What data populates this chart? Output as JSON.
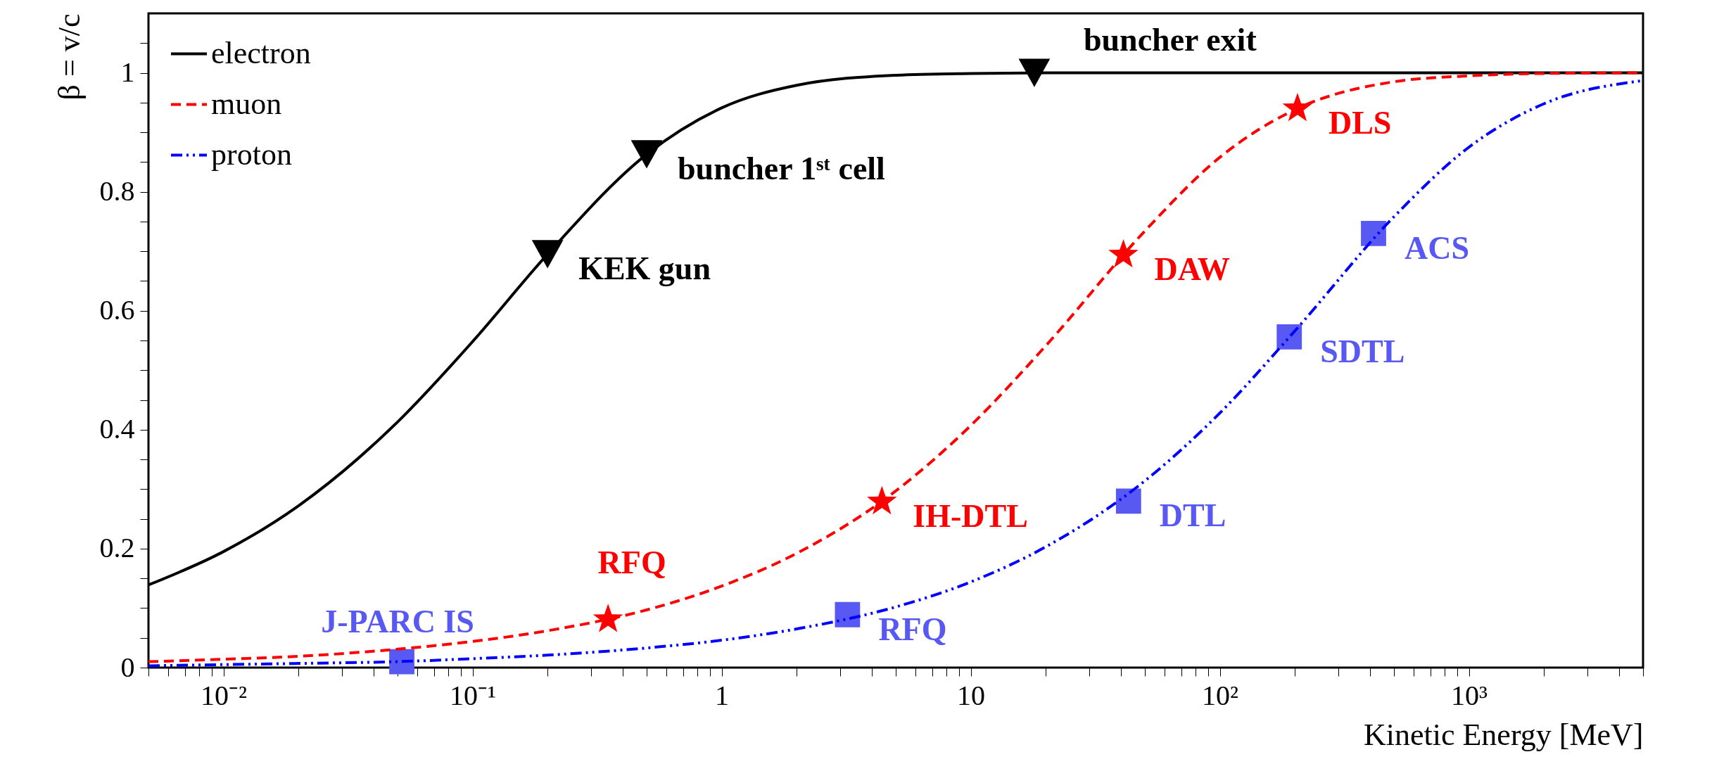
{
  "chart_data": {
    "type": "line",
    "xlabel": "Kinetic Energy [MeV]",
    "ylabel": "β = v/c",
    "log": "x",
    "grid": false,
    "legend": "top left",
    "xlim": [
      0.005,
      5000
    ],
    "ylim": [
      0,
      1.1
    ],
    "xticks": [
      {
        "value": 0.005,
        "label": null
      },
      {
        "value": 0.006,
        "label": null
      },
      {
        "value": 0.007,
        "label": null
      },
      {
        "value": 0.008,
        "label": null
      },
      {
        "value": 0.009,
        "label": null
      },
      {
        "value": 0.01,
        "label": "10⁻²"
      },
      {
        "value": 0.02,
        "label": null
      },
      {
        "value": 0.03,
        "label": null
      },
      {
        "value": 0.04,
        "label": null
      },
      {
        "value": 0.05,
        "label": null
      },
      {
        "value": 0.06,
        "label": null
      },
      {
        "value": 0.07,
        "label": null
      },
      {
        "value": 0.08,
        "label": null
      },
      {
        "value": 0.09,
        "label": null
      },
      {
        "value": 0.1,
        "label": "10⁻¹"
      },
      {
        "value": 0.2,
        "label": null
      },
      {
        "value": 0.3,
        "label": null
      },
      {
        "value": 0.4,
        "label": null
      },
      {
        "value": 0.5,
        "label": null
      },
      {
        "value": 0.6,
        "label": null
      },
      {
        "value": 0.7,
        "label": null
      },
      {
        "value": 0.8,
        "label": null
      },
      {
        "value": 0.9,
        "label": null
      },
      1,
      {
        "value": 2,
        "label": null
      },
      {
        "value": 3,
        "label": null
      },
      {
        "value": 4,
        "label": null
      },
      {
        "value": 5,
        "label": null
      },
      {
        "value": 6,
        "label": null
      },
      {
        "value": 7,
        "label": null
      },
      {
        "value": 8,
        "label": null
      },
      {
        "value": 9,
        "label": null
      },
      10,
      {
        "value": 20,
        "label": null
      },
      {
        "value": 30,
        "label": null
      },
      {
        "value": 40,
        "label": null
      },
      {
        "value": 50,
        "label": null
      },
      {
        "value": 60,
        "label": null
      },
      {
        "value": 70,
        "label": null
      },
      {
        "value": 80,
        "label": null
      },
      {
        "value": 90,
        "label": null
      },
      {
        "value": 100,
        "label": "10²"
      },
      {
        "value": 200,
        "label": null
      },
      {
        "value": 300,
        "label": null
      },
      {
        "value": 400,
        "label": null
      },
      {
        "value": 500,
        "label": null
      },
      {
        "value": 600,
        "label": null
      },
      {
        "value": 700,
        "label": null
      },
      {
        "value": 800,
        "label": null
      },
      {
        "value": 900,
        "label": null
      },
      {
        "value": 1000,
        "label": "10³"
      },
      {
        "value": 2000,
        "label": null
      },
      {
        "value": 3000,
        "label": null
      },
      {
        "value": 4000,
        "label": null
      },
      {
        "value": 5000,
        "label": null
      }
    ],
    "yticks": [
      0,
      {
        "value": 0.05,
        "label": null
      },
      {
        "value": 0.1,
        "label": null
      },
      {
        "value": 0.15,
        "label": null
      },
      0.2,
      {
        "value": 0.25,
        "label": null
      },
      {
        "value": 0.3,
        "label": null
      },
      {
        "value": 0.35,
        "label": null
      },
      0.4,
      {
        "value": 0.45,
        "label": null
      },
      {
        "value": 0.5,
        "label": null
      },
      {
        "value": 0.55,
        "label": null
      },
      0.6,
      {
        "value": 0.65,
        "label": null
      },
      {
        "value": 0.7,
        "label": null
      },
      {
        "value": 0.75,
        "label": null
      },
      0.8,
      {
        "value": 0.85,
        "label": null
      },
      {
        "value": 0.9,
        "label": null
      },
      {
        "value": 0.95,
        "label": null
      },
      1,
      {
        "value": 1.05,
        "label": null
      }
    ],
    "series": [
      {
        "name": "electron",
        "type": "line",
        "line_style": "solid",
        "color": "#000000",
        "x": [
          0.005,
          0.01,
          0.02,
          0.05,
          0.1,
          0.2,
          0.5,
          1,
          2,
          5,
          10,
          20,
          50,
          100,
          200,
          500,
          1000,
          2000,
          5000
        ],
        "values": [
          0.139,
          0.195,
          0.272,
          0.413,
          0.548,
          0.695,
          0.863,
          0.941,
          0.979,
          0.996,
          0.999,
          1.0,
          1.0,
          1.0,
          1.0,
          1.0,
          1.0,
          1.0,
          1.0
        ]
      },
      {
        "name": "muon",
        "type": "line",
        "line_style": "dashed",
        "color": "#ff0000",
        "x": [
          0.005,
          0.01,
          0.02,
          0.05,
          0.1,
          0.2,
          0.5,
          1,
          2,
          5,
          10,
          20,
          50,
          100,
          200,
          500,
          1000,
          2000,
          5000
        ],
        "values": [
          0.01,
          0.014,
          0.019,
          0.031,
          0.044,
          0.062,
          0.097,
          0.137,
          0.192,
          0.297,
          0.407,
          0.541,
          0.734,
          0.858,
          0.938,
          0.985,
          0.995,
          0.999,
          1.0
        ]
      },
      {
        "name": "proton",
        "type": "line",
        "line_style": "dotted",
        "color": "#0000ff",
        "x": [
          0.005,
          0.01,
          0.02,
          0.05,
          0.1,
          0.2,
          0.5,
          1,
          2,
          5,
          10,
          20,
          50,
          100,
          200,
          500,
          1000,
          2000,
          5000
        ],
        "values": [
          0.003,
          0.005,
          0.007,
          0.01,
          0.015,
          0.021,
          0.033,
          0.046,
          0.065,
          0.102,
          0.144,
          0.203,
          0.314,
          0.428,
          0.566,
          0.758,
          0.875,
          0.948,
          0.987
        ]
      },
      {
        "type": "scatter",
        "marker": "triangle",
        "color": "#000000",
        "x": [
          0.2,
          0.5,
          18
        ],
        "values": [
          0.695,
          0.863,
          1.0
        ],
        "value_labels": [
          "KEK gun",
          "buncher 1ˢᵗ cell",
          "buncher exit"
        ]
      },
      {
        "type": "scatter",
        "marker": "star",
        "color": "#ff0000",
        "x": [
          0.35,
          4.4,
          41,
          205
        ],
        "values": [
          0.081,
          0.279,
          0.694,
          0.94
        ],
        "value_labels": [
          "RFQ",
          "IH-DTL",
          "DAW",
          "DLS"
        ]
      },
      {
        "type": "scatter",
        "marker": "square",
        "color": "#5858f2",
        "x": [
          0.052,
          3.2,
          43,
          190,
          414
        ],
        "values": [
          0.01,
          0.089,
          0.28,
          0.556,
          0.73
        ],
        "value_labels": [
          "J-PARC IS",
          "RFQ",
          "DTL",
          "SDTL",
          "ACS"
        ]
      }
    ]
  }
}
